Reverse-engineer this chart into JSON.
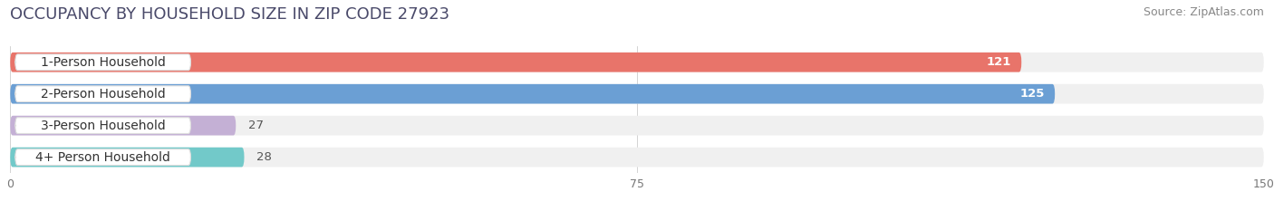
{
  "title": "OCCUPANCY BY HOUSEHOLD SIZE IN ZIP CODE 27923",
  "source": "Source: ZipAtlas.com",
  "categories": [
    "1-Person Household",
    "2-Person Household",
    "3-Person Household",
    "4+ Person Household"
  ],
  "values": [
    121,
    125,
    27,
    28
  ],
  "bar_colors": [
    "#E8746A",
    "#6B9FD4",
    "#C4B0D5",
    "#72C9C9"
  ],
  "bar_label_colors": [
    "#FFFFFF",
    "#FFFFFF",
    "#555555",
    "#555555"
  ],
  "xlim": [
    0,
    150
  ],
  "xticks": [
    0,
    75,
    150
  ],
  "background_color": "#FFFFFF",
  "bar_background_color": "#F0F0F0",
  "title_fontsize": 13,
  "source_fontsize": 9,
  "label_fontsize": 10,
  "value_fontsize": 9.5,
  "title_color": "#4A4A6A",
  "source_color": "#888888"
}
